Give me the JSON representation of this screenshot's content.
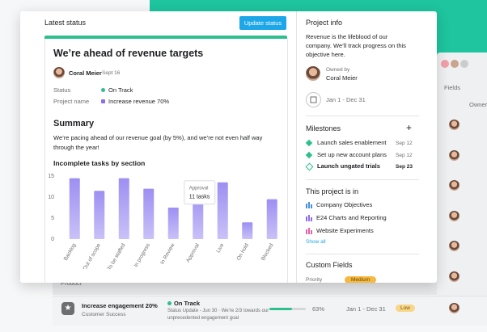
{
  "status_panel": {
    "title": "Latest status",
    "button": "Update status",
    "heading": "We’re ahead of revenue targets",
    "author": "Coral Meier",
    "date": "Sept 16",
    "fields": [
      {
        "label": "Status",
        "value": "On Track"
      },
      {
        "label": "Project name",
        "value": "Increase revenue 70%"
      }
    ],
    "summary_title": "Summary",
    "summary": "We’re pacing ahead of our revenue goal (by 5%), and we’re not even half way through the year!"
  },
  "chart_data": {
    "type": "bar",
    "title": "Incomplete tasks by section",
    "categories": [
      "Backlog",
      "Out of scope",
      "To be staffed",
      "In progress",
      "In Review",
      "Approval",
      "Live",
      "On hold",
      "Blocked"
    ],
    "values": [
      14.5,
      11.5,
      14.5,
      12,
      7.5,
      11,
      13.5,
      4,
      9.5
    ],
    "color": "#9d8ff2",
    "ylim": [
      0,
      15
    ],
    "yticks": [
      0,
      5,
      10,
      15
    ],
    "grid": false,
    "tooltip": {
      "title": "Approval",
      "text": "11 tasks"
    }
  },
  "project_info": {
    "title": "Project info",
    "description": "Revenue is the lifeblood of our company. We’ll track progress on this objective here.",
    "owner_label": "Owned by",
    "owner": "Coral Meier",
    "dates": "Jan 1 - Dec 31",
    "milestones_title": "Milestones",
    "add": "+",
    "milestones": [
      {
        "name": "Launch sales enablement",
        "date": "Sep 12"
      },
      {
        "name": "Set up new account plans",
        "date": "Sep 12"
      },
      {
        "name": "Launch ungated trials",
        "date": "Sep 23"
      }
    ],
    "portfolios_title": "This project is in",
    "portfolios": [
      "Company Objectives",
      "E24 Charts and Reporting",
      "Website Experiments"
    ],
    "show_all": "Show all",
    "custom_fields_title": "Custom Fields",
    "priority_label": "Priority",
    "priority_value": "Medium"
  },
  "background": {
    "fields": "Fields",
    "owner_column": "Owner",
    "row1_team": "Product",
    "row2": {
      "name": "Increase engagement 20%",
      "team": "Customer Success",
      "status": "On Track",
      "update": "Status Update - Jun 30 · We’re 2/3 towards our",
      "update2": "unprecedented engagement goal",
      "progress": {
        "value": 63,
        "label": "63%"
      },
      "dates": "Jan 1 - Dec 31",
      "priority": "Low"
    }
  }
}
